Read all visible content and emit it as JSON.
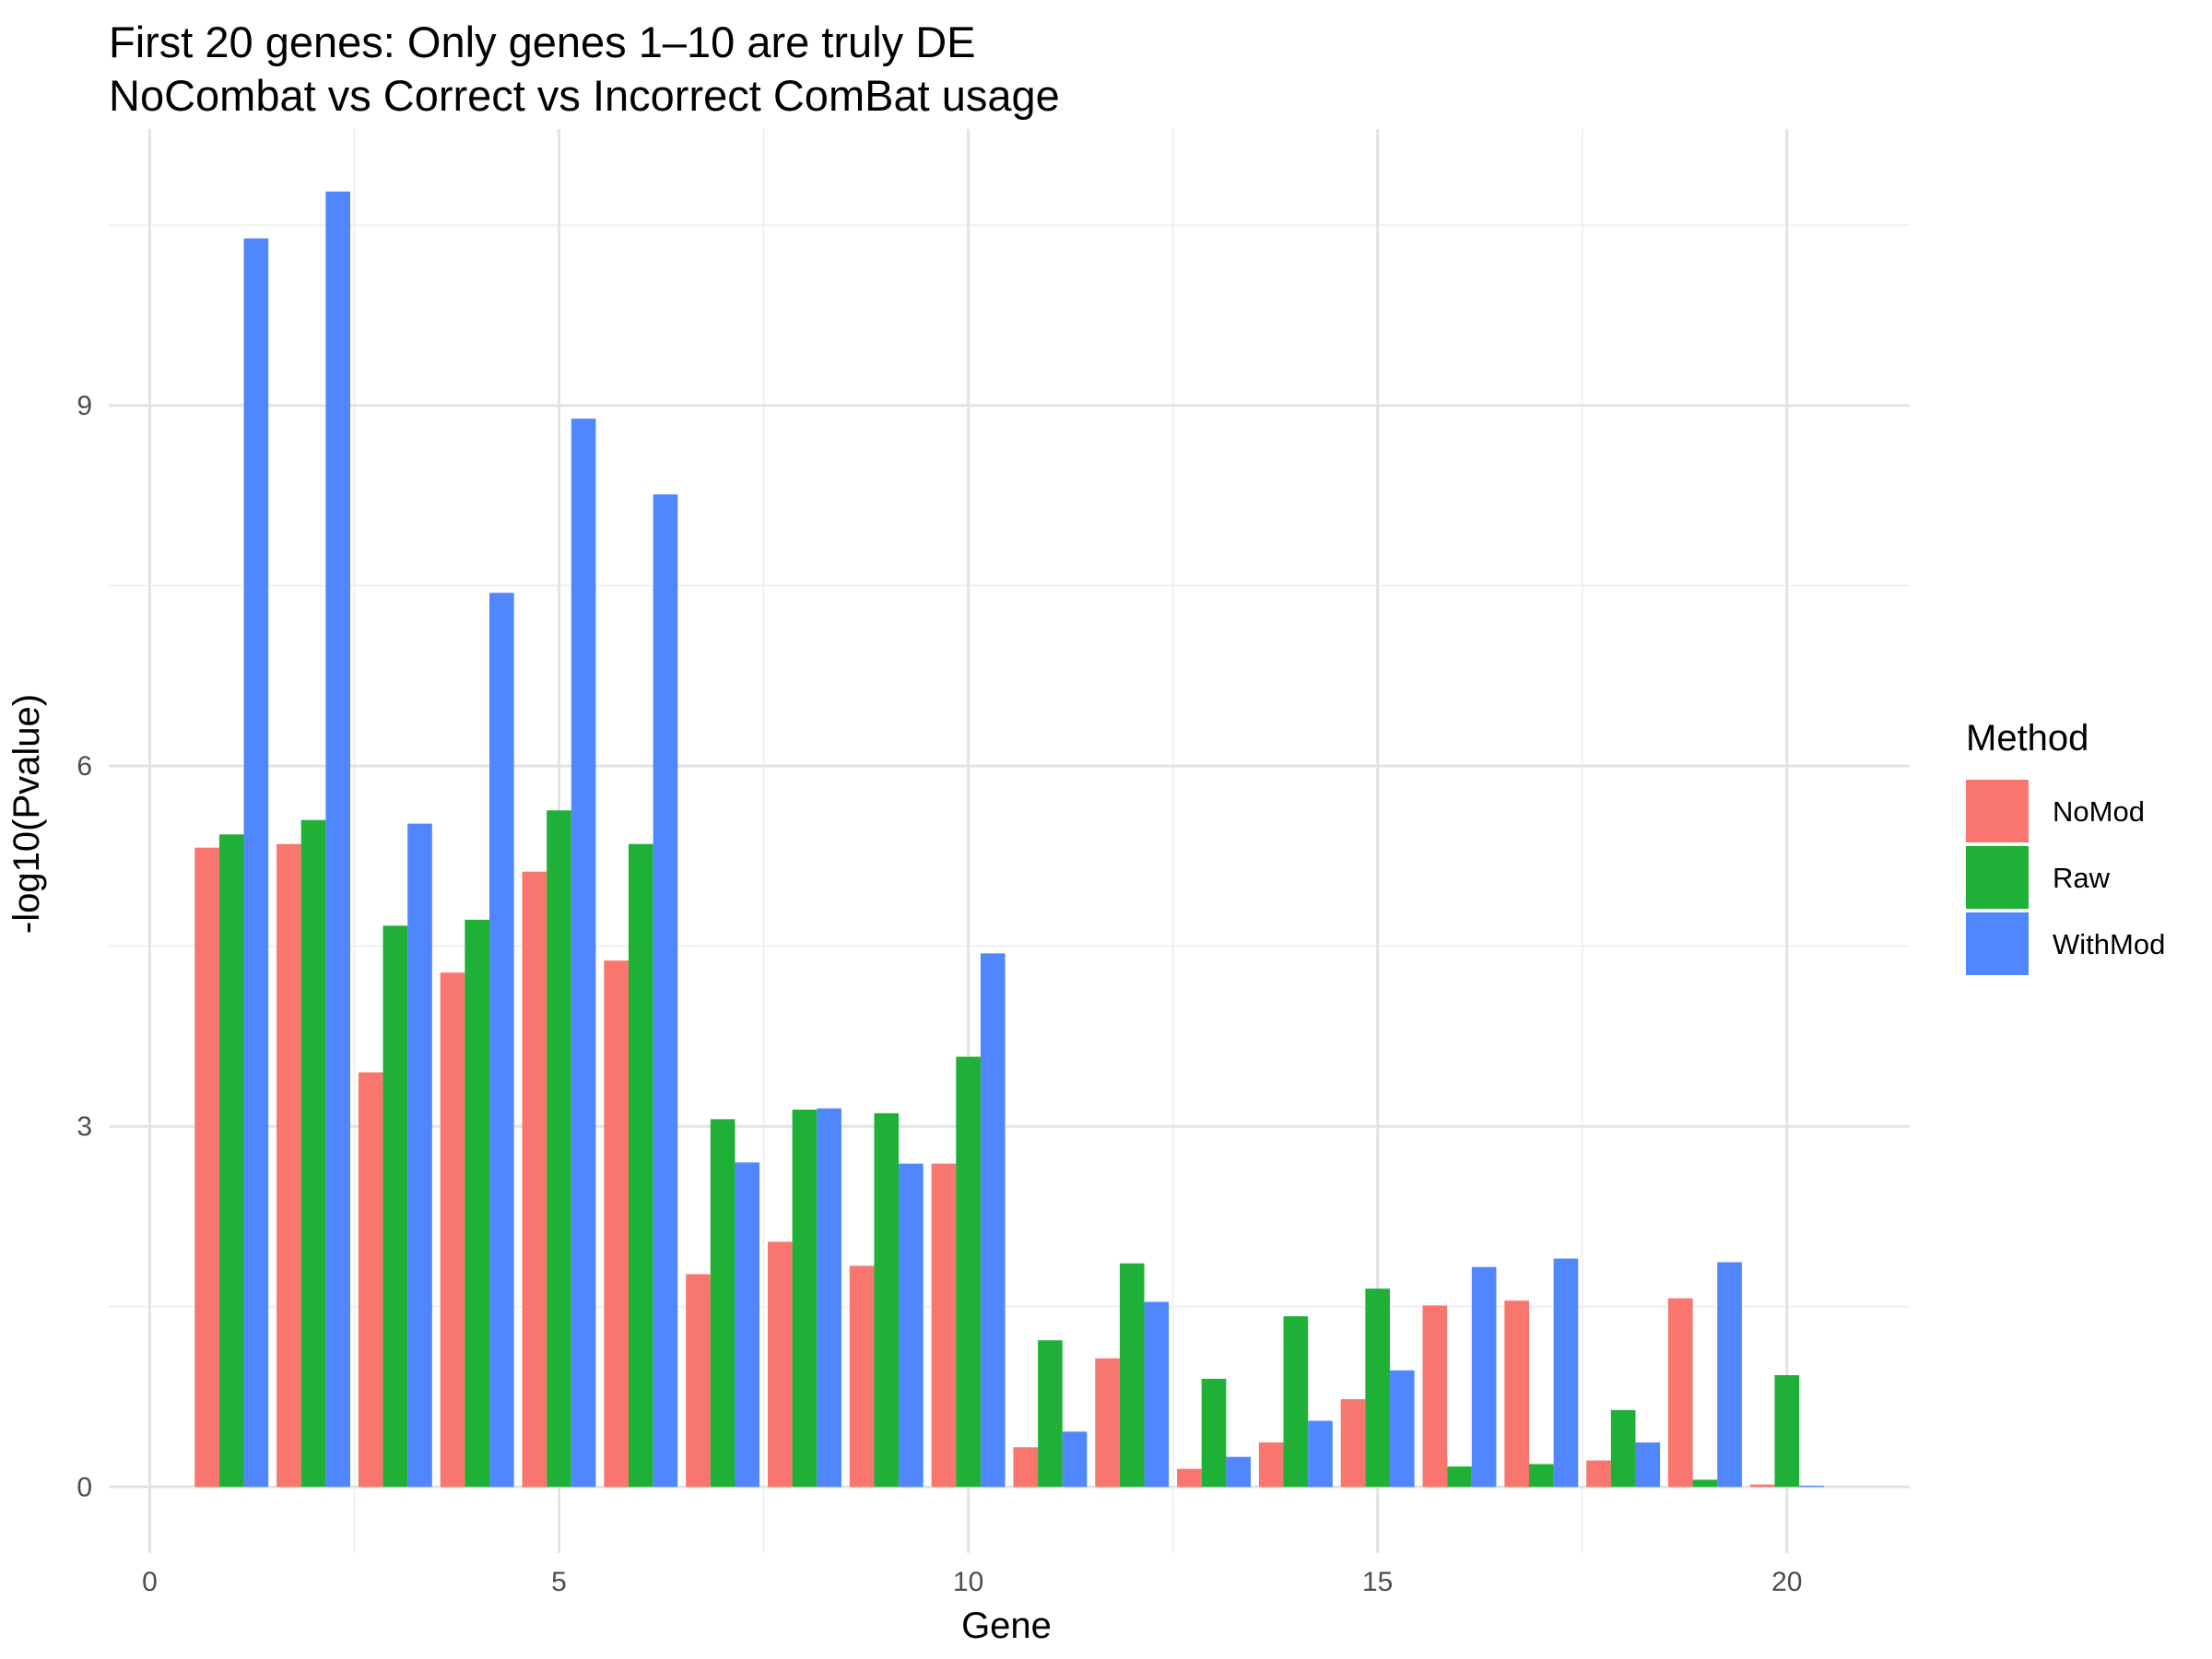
{
  "chart_data": {
    "type": "bar",
    "title": "First 20 genes: Only genes 1–10 are truly DE",
    "subtitle": "NoCombat vs Correct vs Incorrect ComBat usage",
    "xlabel": "Gene",
    "ylabel": "-log10(Pvalue)",
    "xlim": [
      -0.5,
      21.5
    ],
    "ylim": [
      -0.55,
      11.3
    ],
    "x_ticks": [
      "0",
      "5",
      "10",
      "15",
      "20"
    ],
    "y_ticks": [
      "0",
      "3",
      "6",
      "9"
    ],
    "x_tick_values": [
      0,
      5,
      10,
      15,
      20
    ],
    "y_tick_values": [
      0,
      3,
      6,
      9
    ],
    "x_minor": [
      2.5,
      7.5,
      12.5,
      17.5
    ],
    "y_minor": [
      1.5,
      4.5,
      7.5,
      10.5
    ],
    "grid": true,
    "legend": {
      "title": "Method",
      "position": "right"
    },
    "x": [
      1,
      2,
      3,
      4,
      5,
      6,
      7,
      8,
      9,
      10,
      11,
      12,
      13,
      14,
      15,
      16,
      17,
      18,
      19,
      20
    ],
    "series": [
      {
        "name": "NoMod",
        "color": "#F8766D",
        "values": [
          5.32,
          5.35,
          3.45,
          4.28,
          5.12,
          4.38,
          1.77,
          2.04,
          1.84,
          2.69,
          0.33,
          1.07,
          0.15,
          0.37,
          0.73,
          1.51,
          1.55,
          0.22,
          1.57,
          0.02
        ]
      },
      {
        "name": "Raw",
        "color": "#1FB137",
        "values": [
          5.43,
          5.55,
          4.67,
          4.72,
          5.63,
          5.35,
          3.06,
          3.14,
          3.11,
          3.58,
          1.22,
          1.86,
          0.9,
          1.42,
          1.65,
          0.17,
          0.19,
          0.64,
          0.06,
          0.93
        ]
      },
      {
        "name": "WithMod",
        "color": "#5087FF",
        "values": [
          10.39,
          10.78,
          5.52,
          7.44,
          8.89,
          8.26,
          2.7,
          3.15,
          2.69,
          4.44,
          0.46,
          1.54,
          0.25,
          0.55,
          0.97,
          1.83,
          1.9,
          0.37,
          1.87,
          0.01
        ]
      }
    ]
  }
}
